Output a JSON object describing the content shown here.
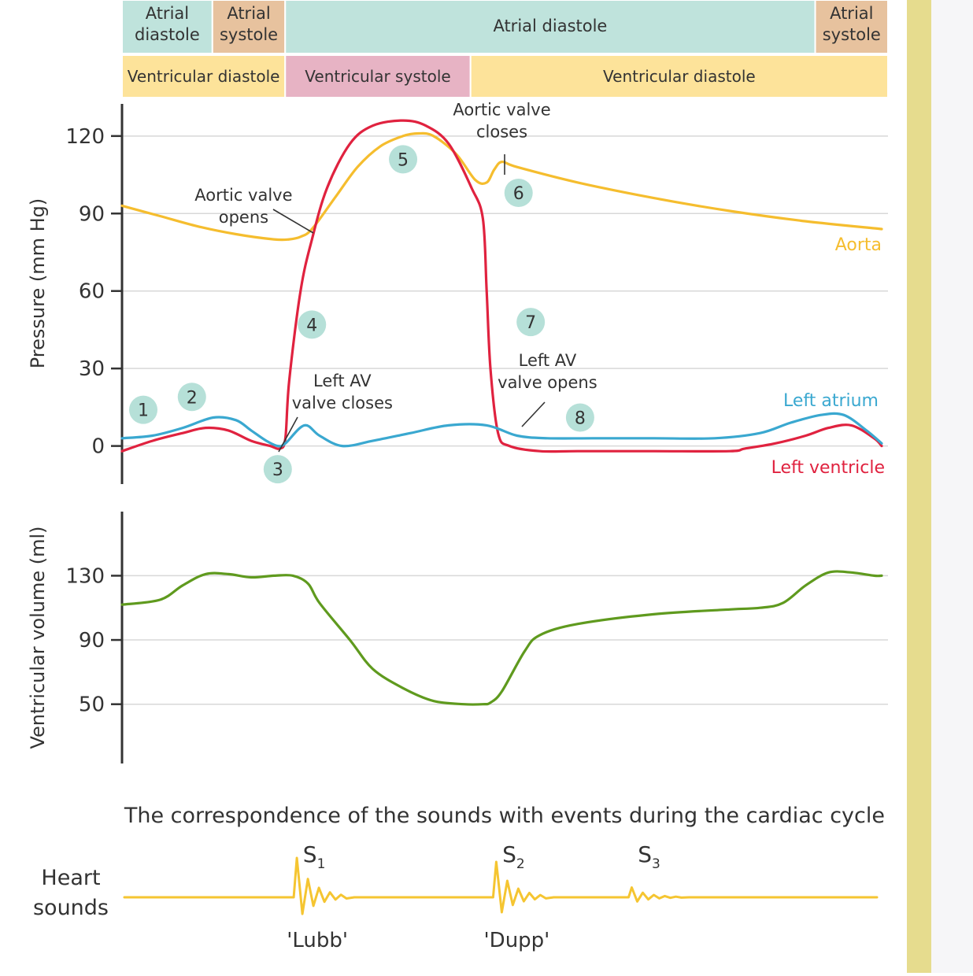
{
  "colors": {
    "atrial_band": "#bfe3dc",
    "atrial_systole_band": "#e7c29e",
    "ventricular_diastole_band": "#fde39a",
    "ventricular_systole_band": "#e7b3c4",
    "aorta": "#f5bd2e",
    "left_ventricle": "#e0223f",
    "left_atrium": "#3aa8d0",
    "volume": "#5f9a1e",
    "heart_sound": "#f5c531",
    "marker": "#b6e0d8",
    "side_bar": "#e6dc8e"
  },
  "phases": {
    "atrial": [
      {
        "label": "Atrial diastole",
        "type": "diastole",
        "start": 0,
        "end": 0.118
      },
      {
        "label": "Atrial systole",
        "type": "systole",
        "start": 0.118,
        "end": 0.213
      },
      {
        "label": "Atrial diastole",
        "type": "diastole",
        "start": 0.213,
        "end": 0.905
      },
      {
        "label": "Atrial systole",
        "type": "systole",
        "start": 0.905,
        "end": 1.0
      }
    ],
    "ventricular": [
      {
        "label": "Ventricular diastole",
        "type": "diastole",
        "start": 0,
        "end": 0.213
      },
      {
        "label": "Ventricular systole",
        "type": "systole",
        "start": 0.213,
        "end": 0.455
      },
      {
        "label": "Ventricular diastole",
        "type": "diastole",
        "start": 0.455,
        "end": 1.0
      }
    ]
  },
  "chart_data": [
    {
      "type": "line",
      "ylabel": "Pressure (mm Hg)",
      "yticks": [
        0,
        30,
        60,
        90,
        120
      ],
      "ylim": [
        -12,
        130
      ],
      "xlim": [
        0,
        1
      ],
      "grid": true,
      "series": [
        {
          "name": "Aorta",
          "color_key": "aorta",
          "x": [
            0,
            0.05,
            0.1,
            0.15,
            0.2,
            0.22,
            0.235,
            0.25,
            0.28,
            0.31,
            0.34,
            0.37,
            0.39,
            0.41,
            0.44,
            0.465,
            0.48,
            0.49,
            0.5,
            0.52,
            0.6,
            0.7,
            0.8,
            0.9,
            1.0
          ],
          "y": [
            93,
            89,
            85,
            82,
            80,
            80,
            81,
            84,
            96,
            108,
            116,
            120,
            121,
            120,
            113,
            103,
            102,
            107,
            110,
            108,
            102,
            96,
            91,
            87,
            84
          ]
        },
        {
          "name": "Left ventricle",
          "color_key": "left_ventricle",
          "x": [
            0,
            0.04,
            0.08,
            0.11,
            0.14,
            0.17,
            0.195,
            0.208,
            0.215,
            0.22,
            0.235,
            0.25,
            0.27,
            0.3,
            0.33,
            0.37,
            0.4,
            0.43,
            0.46,
            0.475,
            0.48,
            0.485,
            0.495,
            0.51,
            0.55,
            0.6,
            0.7,
            0.8,
            0.82,
            0.86,
            0.9,
            0.93,
            0.96,
            0.99,
            1.0
          ],
          "y": [
            -2,
            2,
            5,
            7,
            6,
            2,
            0,
            -1,
            3,
            25,
            60,
            80,
            100,
            117,
            124,
            126,
            124,
            117,
            100,
            88,
            60,
            30,
            5,
            0,
            -2,
            -2,
            -2,
            -2,
            -1,
            1,
            4,
            7,
            8,
            3,
            0
          ]
        },
        {
          "name": "Left atrium",
          "color_key": "left_atrium",
          "x": [
            0,
            0.04,
            0.08,
            0.12,
            0.15,
            0.17,
            0.19,
            0.205,
            0.215,
            0.24,
            0.26,
            0.29,
            0.33,
            0.38,
            0.43,
            0.48,
            0.52,
            0.56,
            0.62,
            0.7,
            0.78,
            0.84,
            0.88,
            0.92,
            0.95,
            0.98,
            1.0
          ],
          "y": [
            3,
            4,
            7,
            11,
            10,
            6,
            2,
            0,
            1,
            8,
            4,
            0,
            2,
            5,
            8,
            8,
            4,
            3,
            3,
            3,
            3,
            5,
            9,
            12,
            12,
            6,
            1
          ]
        }
      ],
      "annotations": [
        {
          "text": "Aortic valve\nopens",
          "x": 0.16,
          "y": 95,
          "align": "middle"
        },
        {
          "text": "Aortic valve\ncloses",
          "x": 0.5,
          "y": 128,
          "align": "middle"
        },
        {
          "text": "Left AV\nvalve closes",
          "x": 0.29,
          "y": 23,
          "align": "middle"
        },
        {
          "text": "Left AV\nvalve opens",
          "x": 0.56,
          "y": 31,
          "align": "middle"
        }
      ],
      "markers": [
        {
          "label": "1",
          "x": 0.028,
          "y": 14
        },
        {
          "label": "2",
          "x": 0.092,
          "y": 19
        },
        {
          "label": "3",
          "x": 0.205,
          "y": -9
        },
        {
          "label": "4",
          "x": 0.25,
          "y": 47
        },
        {
          "label": "5",
          "x": 0.37,
          "y": 111
        },
        {
          "label": "6",
          "x": 0.522,
          "y": 98
        },
        {
          "label": "7",
          "x": 0.538,
          "y": 48
        },
        {
          "label": "8",
          "x": 0.603,
          "y": 11
        }
      ],
      "series_labels": [
        {
          "series": "Aorta",
          "text": "Aorta"
        },
        {
          "series": "Left atrium",
          "text": "Left atrium"
        },
        {
          "series": "Left ventricle",
          "text": "Left ventricle"
        }
      ]
    },
    {
      "type": "line",
      "ylabel": "Ventricular volume (ml)",
      "yticks": [
        50,
        90,
        130
      ],
      "ylim": [
        18,
        165
      ],
      "xlim": [
        0,
        1
      ],
      "grid": true,
      "series": [
        {
          "name": "Ventricular volume",
          "color_key": "volume",
          "x": [
            0,
            0.05,
            0.08,
            0.11,
            0.14,
            0.17,
            0.2,
            0.225,
            0.245,
            0.26,
            0.3,
            0.33,
            0.37,
            0.41,
            0.45,
            0.475,
            0.485,
            0.5,
            0.53,
            0.55,
            0.6,
            0.7,
            0.8,
            0.84,
            0.87,
            0.9,
            0.93,
            0.96,
            0.99,
            1.0
          ],
          "y": [
            112,
            115,
            124,
            131,
            131,
            129,
            130,
            130,
            125,
            113,
            90,
            72,
            60,
            52,
            50,
            50,
            51,
            58,
            83,
            93,
            100,
            106,
            109,
            110,
            113,
            124,
            132,
            132,
            130,
            130
          ]
        }
      ]
    }
  ],
  "sounds_title": "The correspondence of the sounds with events during the cardiac cycle",
  "heart_sounds": {
    "label": "Heart sounds",
    "events": [
      {
        "symbol": "S",
        "sub": "1",
        "word": "'Lubb'",
        "x": 0.225,
        "amplitude": 1.0
      },
      {
        "symbol": "S",
        "sub": "2",
        "word": "'Dupp'",
        "x": 0.49,
        "amplitude": 0.9
      },
      {
        "symbol": "S",
        "sub": "3",
        "word": "",
        "x": 0.67,
        "amplitude": 0.25
      }
    ]
  }
}
